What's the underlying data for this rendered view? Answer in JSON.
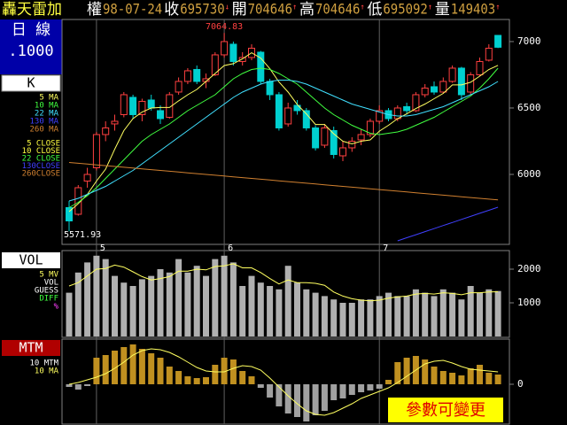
{
  "header": {
    "name": "轟天雷加",
    "items": [
      {
        "label": "權",
        "value": "98-07-24"
      },
      {
        "label": "收",
        "value": "695730",
        "mark": "↓"
      },
      {
        "label": "開",
        "value": "704646",
        "mark": "↑"
      },
      {
        "label": "高",
        "value": "704646",
        "mark": "↑"
      },
      {
        "label": "低",
        "value": "695092",
        "mark": "↑"
      },
      {
        "label": "量",
        "value": "149403",
        "mark": "↑"
      }
    ]
  },
  "side": {
    "period": "日 線",
    "scale": ".1000",
    "k_label": "K",
    "close_labels": [
      {
        "text": "5 CLOSE",
        "color": "#ffff40"
      },
      {
        "text": "10 CLOSE",
        "color": "#ffff40"
      },
      {
        "text": "22 CLOSE",
        "color": "#40ff40"
      },
      {
        "text": "130CLOSE",
        "color": "#4040ff"
      },
      {
        "text": "260CLOSE",
        "color": "#d08030"
      }
    ]
  },
  "footer": "參數可變更",
  "chart_data": [
    {
      "type": "candlestick",
      "categories": [
        null,
        null,
        null,
        "5",
        null,
        null,
        null,
        null,
        null,
        null,
        null,
        null,
        null,
        null,
        null,
        null,
        null,
        "6",
        null,
        null,
        null,
        null,
        null,
        null,
        null,
        null,
        null,
        null,
        null,
        null,
        null,
        null,
        null,
        null,
        "7",
        null,
        null,
        null,
        null,
        null,
        null,
        null,
        null,
        null,
        null,
        null,
        null,
        null
      ],
      "open": [
        5750,
        5700,
        5950,
        6050,
        6300,
        6380,
        6450,
        6580,
        6450,
        6560,
        6480,
        6430,
        6620,
        6700,
        6790,
        6700,
        6750,
        6900,
        6980,
        6850,
        6880,
        6920,
        6700,
        6600,
        6380,
        6520,
        6480,
        6350,
        6220,
        6330,
        6140,
        6200,
        6260,
        6300,
        6400,
        6480,
        6420,
        6510,
        6480,
        6600,
        6660,
        6620,
        6700,
        6800,
        6620,
        6750,
        6860,
        7046.46
      ],
      "high": [
        5800,
        5920,
        6050,
        6320,
        6400,
        6450,
        6620,
        6600,
        6570,
        6600,
        6520,
        6620,
        6730,
        6800,
        6820,
        6760,
        6920,
        7064.83,
        7000,
        6920,
        6980,
        6930,
        6720,
        6620,
        6540,
        6560,
        6500,
        6370,
        6380,
        6360,
        6250,
        6280,
        6340,
        6420,
        6520,
        6500,
        6520,
        6540,
        6620,
        6680,
        6700,
        6730,
        6820,
        6810,
        6770,
        6880,
        6980,
        7046.46
      ],
      "low": [
        5571.93,
        5690,
        5900,
        6030,
        6250,
        6330,
        6430,
        6420,
        6400,
        6480,
        6380,
        6420,
        6600,
        6680,
        6680,
        6650,
        6740,
        6880,
        6820,
        6820,
        6860,
        6680,
        6560,
        6330,
        6360,
        6450,
        6330,
        6180,
        6200,
        6120,
        6100,
        6170,
        6220,
        6280,
        6380,
        6400,
        6400,
        6450,
        6470,
        6580,
        6600,
        6610,
        6690,
        6560,
        6600,
        6740,
        6850,
        6950.92
      ],
      "close": [
        5650,
        5900,
        6000,
        6300,
        6350,
        6400,
        6600,
        6450,
        6550,
        6500,
        6420,
        6600,
        6700,
        6780,
        6700,
        6720,
        6900,
        7000,
        6850,
        6880,
        6950,
        6700,
        6600,
        6350,
        6500,
        6480,
        6350,
        6200,
        6350,
        6150,
        6200,
        6250,
        6300,
        6400,
        6480,
        6420,
        6500,
        6480,
        6600,
        6650,
        6620,
        6700,
        6800,
        6600,
        6750,
        6850,
        6950,
        6957.3
      ],
      "up_color": "#ff4040",
      "down_color": "#00d0d0",
      "ylim": [
        5480,
        7113
      ],
      "yticks": [
        6000,
        6500,
        7000
      ],
      "annotations": [
        "7064.83",
        "5571.93"
      ],
      "series": [
        {
          "name": "5 MA",
          "color": "#ffff60",
          "values": [
            5720,
            5780,
            5850,
            5950,
            6040,
            6190,
            6330,
            6420,
            6470,
            6500,
            6504,
            6504,
            6554,
            6600,
            6640,
            6700,
            6760,
            6820,
            6834,
            6870,
            6916,
            6876,
            6796,
            6696,
            6620,
            6526,
            6456,
            6376,
            6376,
            6306,
            6250,
            6230,
            6250,
            6260,
            6326,
            6370,
            6420,
            6456,
            6496,
            6530,
            6570,
            6610,
            6674,
            6674,
            6694,
            6740,
            6790,
            6821
          ]
        },
        {
          "name": "10 MA",
          "color": "#40ff40",
          "values": [
            5750,
            5790,
            5840,
            5900,
            5970,
            6040,
            6110,
            6180,
            6250,
            6300,
            6340,
            6380,
            6430,
            6480,
            6520,
            6560,
            6600,
            6660,
            6720,
            6760,
            6790,
            6800,
            6790,
            6760,
            6720,
            6680,
            6620,
            6560,
            6500,
            6450,
            6410,
            6370,
            6340,
            6310,
            6300,
            6310,
            6320,
            6340,
            6370,
            6400,
            6430,
            6470,
            6510,
            6550,
            6590,
            6650,
            6720,
            6800
          ]
        },
        {
          "name": "22 MA",
          "color": "#40e0ff",
          "values": [
            5800,
            5820,
            5850,
            5880,
            5910,
            5950,
            5990,
            6030,
            6080,
            6130,
            6180,
            6230,
            6280,
            6330,
            6380,
            6430,
            6480,
            6530,
            6580,
            6620,
            6650,
            6680,
            6700,
            6710,
            6710,
            6700,
            6680,
            6650,
            6620,
            6590,
            6560,
            6530,
            6510,
            6490,
            6470,
            6450,
            6440,
            6440,
            6450,
            6470,
            6490,
            6510,
            6540,
            6570,
            6600,
            6630,
            6660,
            6700
          ]
        },
        {
          "name": "130 MA",
          "color": "#4040ff",
          "values": [
            null,
            null,
            null,
            null,
            null,
            null,
            null,
            null,
            null,
            null,
            null,
            null,
            null,
            null,
            null,
            null,
            null,
            null,
            null,
            null,
            null,
            null,
            null,
            null,
            null,
            null,
            null,
            null,
            null,
            null,
            null,
            null,
            null,
            null,
            null,
            null,
            5500,
            5523,
            5546,
            5569,
            5592,
            5615,
            5638,
            5661,
            5684,
            5707,
            5730,
            5753
          ]
        },
        {
          "name": "260 MA",
          "color": "#d08030",
          "values": [
            6090,
            6084,
            6078,
            6072,
            6066,
            6060,
            6054,
            6048,
            6042,
            6036,
            6030,
            6024,
            6018,
            6012,
            6006,
            6000,
            5994,
            5988,
            5982,
            5976,
            5970,
            5964,
            5958,
            5952,
            5946,
            5940,
            5934,
            5928,
            5922,
            5916,
            5910,
            5904,
            5898,
            5892,
            5886,
            5880,
            5874,
            5868,
            5862,
            5856,
            5850,
            5844,
            5838,
            5832,
            5826,
            5820,
            5814,
            5808
          ]
        }
      ]
    },
    {
      "type": "bar",
      "title": "VOL",
      "color": "#b0b0b0",
      "values": [
        1300,
        1900,
        2200,
        2400,
        2300,
        1800,
        1600,
        1500,
        1700,
        1800,
        2000,
        1900,
        2300,
        1900,
        2100,
        1800,
        2300,
        2400,
        2200,
        1500,
        1800,
        1600,
        1500,
        1400,
        2100,
        1600,
        1400,
        1300,
        1200,
        1100,
        1000,
        1000,
        1100,
        1100,
        1200,
        1300,
        1200,
        1200,
        1400,
        1300,
        1200,
        1400,
        1300,
        1100,
        1500,
        1300,
        1400,
        1350
      ],
      "ylim": [
        0,
        2500
      ],
      "yticks": [
        1000,
        2000
      ],
      "legend_extra": [
        {
          "text": "VOL",
          "color": "#ffffff"
        },
        {
          "text": "GUESS",
          "color": "#ffffff"
        },
        {
          "text": "DIFF",
          "color": "#40ff40"
        },
        {
          "text": "%",
          "color": "#ff40ff"
        }
      ],
      "series": [
        {
          "name": "5 MV",
          "color": "#ffff60",
          "values": [
            1500,
            1600,
            1800,
            2000,
            2020,
            2120,
            2060,
            1920,
            1780,
            1680,
            1720,
            1780,
            1940,
            1940,
            2000,
            1980,
            2080,
            2100,
            2160,
            2040,
            2040,
            1900,
            1720,
            1560,
            1680,
            1600,
            1600,
            1580,
            1520,
            1320,
            1200,
            1120,
            1080,
            1060,
            1080,
            1140,
            1180,
            1200,
            1260,
            1280,
            1260,
            1300,
            1280,
            1240,
            1300,
            1300,
            1320,
            1330
          ]
        }
      ]
    },
    {
      "type": "bar",
      "title": "MTM",
      "name": "10 MTM",
      "color": "#c09020",
      "neg_color": "#a0a0a0",
      "values": [
        -30,
        -60,
        -20,
        300,
        330,
        380,
        420,
        450,
        400,
        350,
        300,
        200,
        150,
        90,
        70,
        80,
        220,
        300,
        280,
        150,
        90,
        -40,
        -150,
        -250,
        -330,
        -370,
        -420,
        -350,
        -300,
        -180,
        -160,
        -120,
        -90,
        -70,
        -50,
        50,
        250,
        300,
        320,
        280,
        200,
        150,
        130,
        100,
        180,
        220,
        130,
        110
      ],
      "ylim": [
        -440,
        490
      ],
      "yticks": [
        0
      ],
      "series": [
        {
          "name": "10 MA",
          "color": "#ffff60",
          "values": [
            0,
            20,
            50,
            80,
            120,
            180,
            250,
            330,
            380,
            400,
            390,
            360,
            310,
            250,
            190,
            150,
            140,
            140,
            180,
            210,
            200,
            160,
            70,
            -30,
            -130,
            -220,
            -300,
            -340,
            -350,
            -320,
            -270,
            -220,
            -160,
            -120,
            -80,
            -40,
            20,
            90,
            160,
            230,
            260,
            270,
            240,
            200,
            170,
            160,
            150,
            140
          ]
        }
      ]
    }
  ]
}
